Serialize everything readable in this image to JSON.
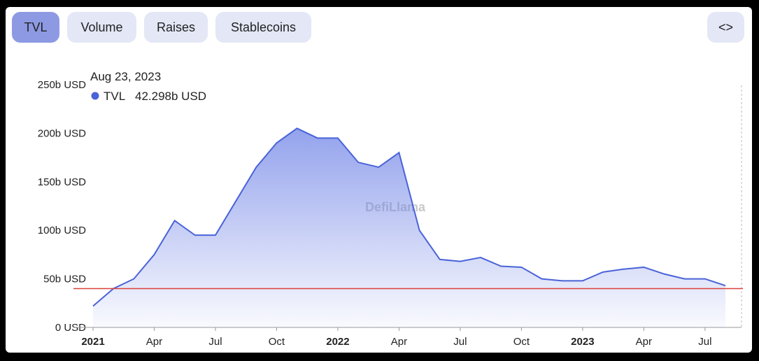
{
  "tabs": [
    "TVL",
    "Volume",
    "Raises",
    "Stablecoins"
  ],
  "active_tab": 0,
  "embed_button": "<>",
  "chart_data": {
    "type": "line",
    "watermark": "DefiLlama",
    "tooltip": {
      "date": "Aug 23, 2023",
      "series": "TVL",
      "value": "42.298b USD"
    },
    "x": [
      "2021-01",
      "2021-02",
      "2021-03",
      "2021-04",
      "2021-05",
      "2021-06",
      "2021-07",
      "2021-08",
      "2021-09",
      "2021-10",
      "2021-11",
      "2021-12",
      "2022-01",
      "2022-02",
      "2022-03",
      "2022-04",
      "2022-05",
      "2022-06",
      "2022-07",
      "2022-08",
      "2022-09",
      "2022-10",
      "2022-11",
      "2022-12",
      "2023-01",
      "2023-02",
      "2023-03",
      "2023-04",
      "2023-05",
      "2023-06",
      "2023-07",
      "2023-08"
    ],
    "series": [
      {
        "name": "TVL",
        "color": "#4a63d8",
        "values": [
          22,
          40,
          50,
          75,
          110,
          95,
          95,
          130,
          165,
          190,
          205,
          195,
          195,
          170,
          165,
          180,
          100,
          70,
          68,
          72,
          63,
          62,
          50,
          48,
          48,
          57,
          60,
          62,
          55,
          50,
          50,
          43
        ]
      }
    ],
    "xlim": [
      "2021-01",
      "2023-08"
    ],
    "xticks": [
      {
        "value": "2021-01",
        "label": "2021"
      },
      {
        "value": "2021-04",
        "label": "Apr"
      },
      {
        "value": "2021-07",
        "label": "Jul"
      },
      {
        "value": "2021-10",
        "label": "Oct"
      },
      {
        "value": "2022-01",
        "label": "2022"
      },
      {
        "value": "2022-04",
        "label": "Apr"
      },
      {
        "value": "2022-07",
        "label": "Jul"
      },
      {
        "value": "2022-10",
        "label": "Oct"
      },
      {
        "value": "2023-01",
        "label": "2023"
      },
      {
        "value": "2023-04",
        "label": "Apr"
      },
      {
        "value": "2023-07",
        "label": "Jul"
      }
    ],
    "ylim": [
      0,
      250
    ],
    "yticks": [
      {
        "value": 0,
        "label": "0 USD"
      },
      {
        "value": 50,
        "label": "50b USD"
      },
      {
        "value": 100,
        "label": "100b USD"
      },
      {
        "value": 150,
        "label": "150b USD"
      },
      {
        "value": 200,
        "label": "200b USD"
      },
      {
        "value": 250,
        "label": "250b USD"
      }
    ],
    "reference_line": {
      "value": 40,
      "color": "#d9403a"
    }
  }
}
